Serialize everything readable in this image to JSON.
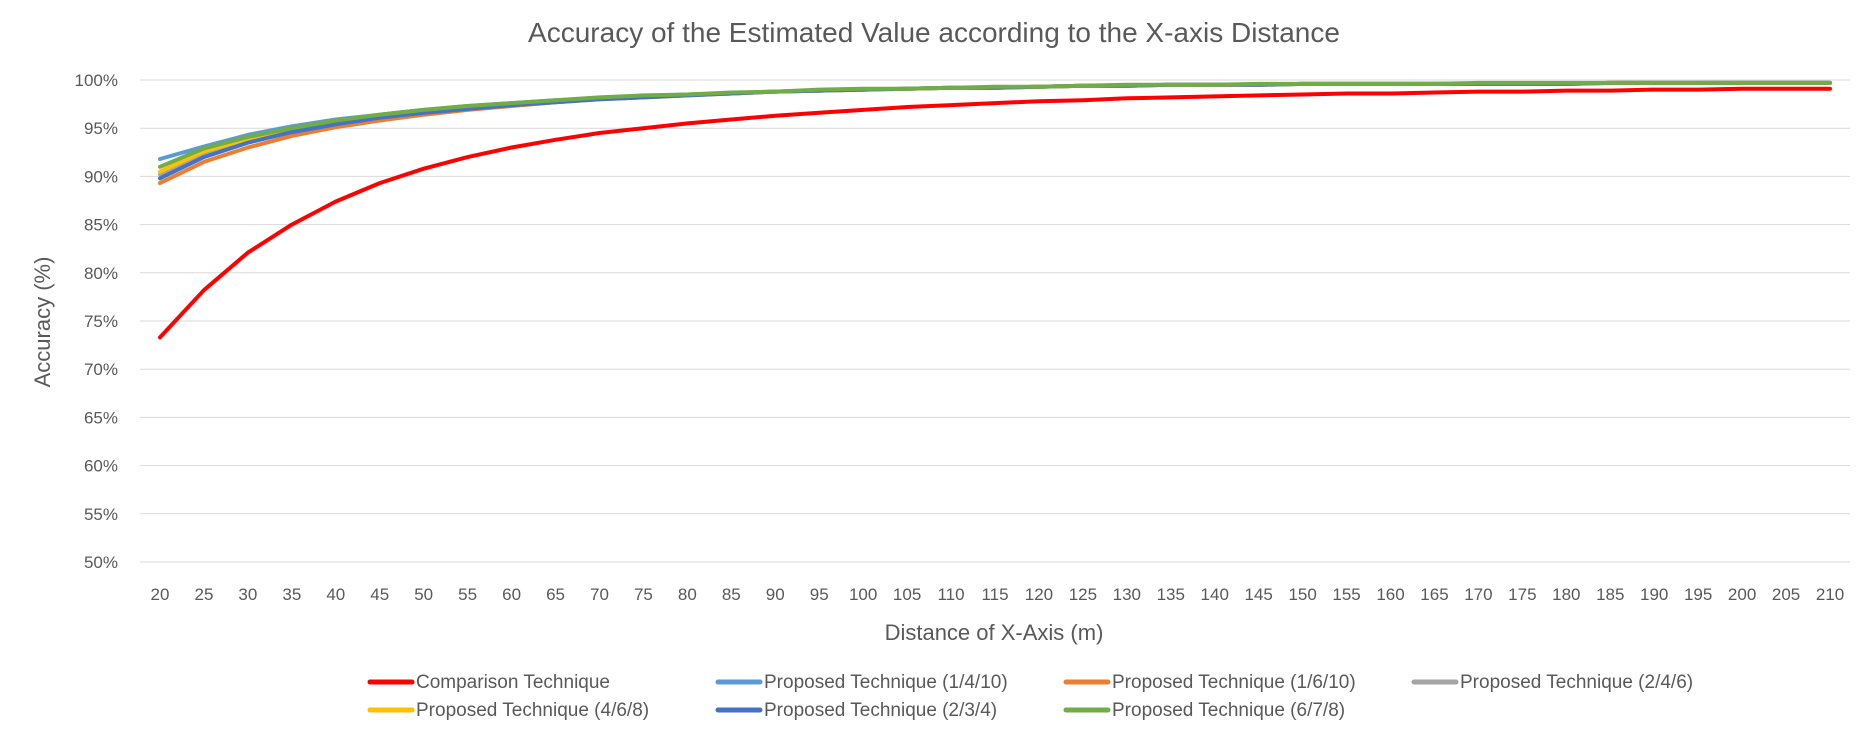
{
  "chart_data": {
    "type": "line",
    "title": "Accuracy of the Estimated Value according to the X-axis Distance",
    "xlabel": "Distance of X-Axis (m)",
    "ylabel": "Accuracy (%)",
    "ylim": [
      50,
      100
    ],
    "y_ticks": [
      "50%",
      "55%",
      "60%",
      "65%",
      "70%",
      "75%",
      "80%",
      "85%",
      "90%",
      "95%",
      "100%"
    ],
    "grid": true,
    "legend_position": "bottom",
    "x": [
      20,
      25,
      30,
      35,
      40,
      45,
      50,
      55,
      60,
      65,
      70,
      75,
      80,
      85,
      90,
      95,
      100,
      105,
      110,
      115,
      120,
      125,
      130,
      135,
      140,
      145,
      150,
      155,
      160,
      165,
      170,
      175,
      180,
      185,
      190,
      195,
      200,
      205,
      210
    ],
    "series": [
      {
        "name": "Comparison Technique",
        "color": "#ff0000",
        "values": [
          73.3,
          78.2,
          82.1,
          85.0,
          87.4,
          89.3,
          90.8,
          92.0,
          93.0,
          93.8,
          94.5,
          95.0,
          95.5,
          95.9,
          96.3,
          96.6,
          96.9,
          97.2,
          97.4,
          97.6,
          97.8,
          97.9,
          98.1,
          98.2,
          98.3,
          98.4,
          98.5,
          98.6,
          98.6,
          98.7,
          98.8,
          98.8,
          98.9,
          98.9,
          99.0,
          99.0,
          99.1,
          99.1,
          99.1
        ]
      },
      {
        "name": "Proposed Technique (1/4/10)",
        "color": "#5b9bd5",
        "values": [
          91.8,
          93.1,
          94.3,
          95.2,
          95.9,
          96.4,
          96.9,
          97.3,
          97.6,
          97.9,
          98.1,
          98.3,
          98.5,
          98.6,
          98.8,
          98.9,
          99.0,
          99.1,
          99.2,
          99.2,
          99.3,
          99.4,
          99.4,
          99.5,
          99.5,
          99.5,
          99.6,
          99.6,
          99.6,
          99.6,
          99.6,
          99.6,
          99.6,
          99.7,
          99.7,
          99.7,
          99.7,
          99.7,
          99.7
        ]
      },
      {
        "name": "Proposed Technique (1/6/10)",
        "color": "#ed7d31",
        "values": [
          89.3,
          91.5,
          93.0,
          94.2,
          95.1,
          95.8,
          96.4,
          96.9,
          97.3,
          97.7,
          98.0,
          98.2,
          98.4,
          98.6,
          98.8,
          98.9,
          99.0,
          99.1,
          99.2,
          99.2,
          99.3,
          99.4,
          99.4,
          99.5,
          99.5,
          99.5,
          99.6,
          99.6,
          99.6,
          99.6,
          99.6,
          99.6,
          99.6,
          99.7,
          99.7,
          99.7,
          99.7,
          99.7,
          99.7
        ]
      },
      {
        "name": "Proposed Technique (2/4/6)",
        "color": "#a5a5a5",
        "values": [
          90.2,
          92.3,
          93.8,
          94.8,
          95.6,
          96.2,
          96.7,
          97.1,
          97.5,
          97.8,
          98.1,
          98.3,
          98.5,
          98.6,
          98.8,
          98.9,
          99.0,
          99.1,
          99.2,
          99.2,
          99.3,
          99.4,
          99.4,
          99.5,
          99.5,
          99.5,
          99.6,
          99.6,
          99.6,
          99.6,
          99.6,
          99.6,
          99.6,
          99.7,
          99.7,
          99.7,
          99.7,
          99.7,
          99.7
        ]
      },
      {
        "name": "Proposed Technique (4/6/8)",
        "color": "#ffc000",
        "values": [
          90.5,
          92.6,
          93.9,
          94.9,
          95.7,
          96.3,
          96.8,
          97.2,
          97.5,
          97.8,
          98.1,
          98.3,
          98.5,
          98.6,
          98.8,
          98.9,
          99.0,
          99.1,
          99.2,
          99.2,
          99.3,
          99.4,
          99.4,
          99.5,
          99.5,
          99.5,
          99.6,
          99.6,
          99.6,
          99.6,
          99.6,
          99.6,
          99.6,
          99.7,
          99.7,
          99.7,
          99.7,
          99.7,
          99.7
        ]
      },
      {
        "name": "Proposed Technique (2/3/4)",
        "color": "#4472c4",
        "values": [
          89.8,
          92.0,
          93.5,
          94.6,
          95.4,
          96.1,
          96.6,
          97.0,
          97.4,
          97.7,
          98.0,
          98.2,
          98.4,
          98.6,
          98.8,
          98.9,
          99.0,
          99.1,
          99.2,
          99.2,
          99.3,
          99.4,
          99.4,
          99.5,
          99.5,
          99.5,
          99.6,
          99.6,
          99.6,
          99.6,
          99.6,
          99.6,
          99.6,
          99.7,
          99.7,
          99.7,
          99.7,
          99.7,
          99.7
        ]
      },
      {
        "name": "Proposed Technique (6/7/8)",
        "color": "#70ad47",
        "values": [
          91.0,
          92.9,
          94.1,
          95.0,
          95.8,
          96.4,
          96.9,
          97.3,
          97.6,
          97.9,
          98.2,
          98.4,
          98.5,
          98.7,
          98.8,
          99.0,
          99.1,
          99.1,
          99.2,
          99.3,
          99.3,
          99.4,
          99.5,
          99.5,
          99.5,
          99.6,
          99.6,
          99.6,
          99.6,
          99.6,
          99.7,
          99.7,
          99.7,
          99.7,
          99.7,
          99.7,
          99.7,
          99.7,
          99.7
        ]
      }
    ]
  }
}
